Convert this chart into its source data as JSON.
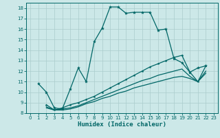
{
  "xlabel": "Humidex (Indice chaleur)",
  "bg_color": "#cce8e8",
  "grid_color": "#aacccc",
  "line_color": "#006666",
  "xlim": [
    -0.5,
    23.5
  ],
  "ylim": [
    8,
    18.5
  ],
  "xticks": [
    0,
    1,
    2,
    3,
    4,
    5,
    6,
    7,
    8,
    9,
    10,
    11,
    12,
    13,
    14,
    15,
    16,
    17,
    18,
    19,
    20,
    21,
    22,
    23
  ],
  "yticks": [
    8,
    9,
    10,
    11,
    12,
    13,
    14,
    15,
    16,
    17,
    18
  ],
  "line1_x": [
    1,
    2,
    3,
    4,
    5,
    6,
    7,
    8,
    9,
    10,
    11,
    12,
    13,
    14,
    15,
    16,
    17,
    18,
    19,
    20,
    21,
    22
  ],
  "line1_y": [
    10.8,
    10.0,
    8.5,
    8.4,
    10.3,
    12.3,
    11.0,
    14.8,
    16.1,
    18.1,
    18.1,
    17.5,
    17.6,
    17.6,
    17.6,
    15.9,
    16.0,
    13.2,
    12.8,
    11.9,
    12.3,
    12.5
  ],
  "line2_x": [
    2,
    3,
    4,
    5,
    6,
    7,
    8,
    9,
    10,
    11,
    12,
    13,
    14,
    15,
    16,
    17,
    18,
    19,
    20,
    21,
    22
  ],
  "line2_y": [
    8.8,
    8.3,
    8.5,
    8.8,
    9.0,
    9.3,
    9.6,
    10.0,
    10.4,
    10.8,
    11.2,
    11.6,
    12.0,
    12.4,
    12.7,
    13.0,
    13.3,
    13.5,
    11.9,
    11.0,
    12.5
  ],
  "line3_x": [
    2,
    3,
    4,
    5,
    6,
    7,
    8,
    9,
    10,
    11,
    12,
    13,
    14,
    15,
    16,
    17,
    18,
    19,
    20,
    21,
    22
  ],
  "line3_y": [
    8.6,
    8.3,
    8.4,
    8.5,
    8.7,
    9.0,
    9.3,
    9.6,
    9.9,
    10.2,
    10.5,
    10.8,
    11.1,
    11.3,
    11.6,
    11.8,
    12.0,
    12.2,
    11.5,
    11.0,
    12.0
  ],
  "line4_x": [
    2,
    3,
    4,
    5,
    6,
    7,
    8,
    9,
    10,
    11,
    12,
    13,
    14,
    15,
    16,
    17,
    18,
    19,
    20,
    21,
    22
  ],
  "line4_y": [
    8.5,
    8.3,
    8.3,
    8.4,
    8.6,
    8.9,
    9.1,
    9.4,
    9.6,
    9.9,
    10.1,
    10.4,
    10.6,
    10.8,
    11.0,
    11.2,
    11.4,
    11.5,
    11.3,
    11.0,
    11.8
  ]
}
